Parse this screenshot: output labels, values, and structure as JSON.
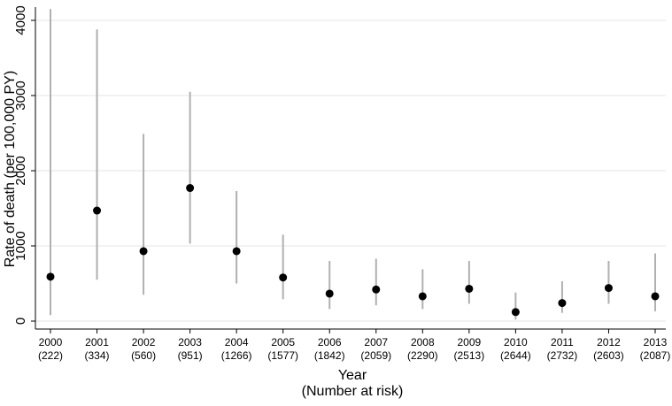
{
  "chart_data": {
    "type": "scatter",
    "ylabel": "Rate of death (per 100,000 PY)",
    "xlabel": "Year",
    "xlabel_sub": "(Number at risk)",
    "ylim": [
      -60,
      4200
    ],
    "yticks": [
      0,
      1000,
      2000,
      3000,
      4000
    ],
    "grid": true,
    "categories": [
      "2000",
      "2001",
      "2002",
      "2003",
      "2004",
      "2005",
      "2006",
      "2007",
      "2008",
      "2009",
      "2010",
      "2011",
      "2012",
      "2013"
    ],
    "at_risk": [
      "(222)",
      "(334)",
      "(560)",
      "(951)",
      "(1266)",
      "(1577)",
      "(1842)",
      "(2059)",
      "(2290)",
      "(2513)",
      "(2644)",
      "(2732)",
      "(2603)",
      "(2087)"
    ],
    "series": [
      {
        "values": [
          590,
          1470,
          930,
          1770,
          930,
          580,
          365,
          420,
          330,
          430,
          120,
          240,
          440,
          330
        ],
        "ci_lower": [
          80,
          550,
          350,
          1030,
          500,
          290,
          160,
          210,
          160,
          230,
          20,
          110,
          230,
          130
        ],
        "ci_upper": [
          4150,
          3880,
          2490,
          3050,
          1730,
          1150,
          800,
          830,
          690,
          800,
          380,
          530,
          800,
          900
        ]
      }
    ],
    "colors": {
      "point": "#000000",
      "ci": "#b0b0b0",
      "grid": "#e6e6e6",
      "axis": "#000000"
    }
  }
}
